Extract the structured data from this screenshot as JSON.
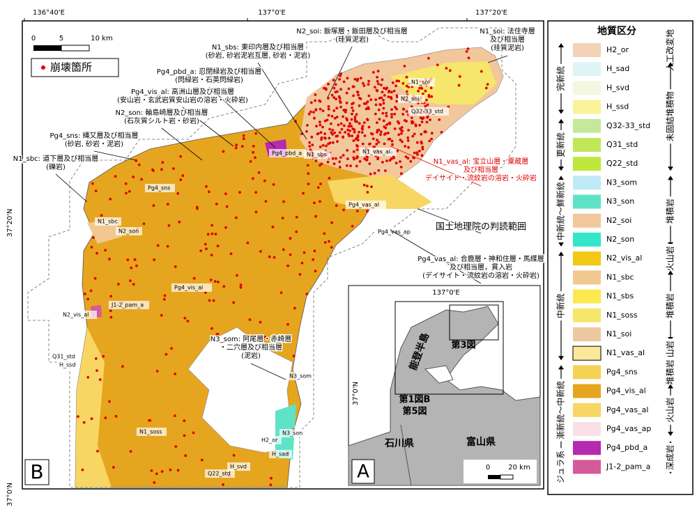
{
  "coordinates": {
    "top": [
      "136°40'E",
      "137°0'E",
      "137°20'E"
    ],
    "left": [
      "37°20'N",
      "37°0'N"
    ]
  },
  "scale_bar": [
    "0",
    "5",
    "10 km"
  ],
  "point_legend": "崩壊箇所",
  "panel_labels": {
    "main": "B",
    "inset": "A"
  },
  "callouts": [
    {
      "lines": [
        "N2_soi: 飯塚層・飯田層及び相当層",
        "(珪質泥岩)"
      ],
      "color": "#000000"
    },
    {
      "lines": [
        "N1_soi: 法住寺層",
        "及び相当層",
        "(珪質泥岩)"
      ],
      "color": "#000000"
    },
    {
      "lines": [
        "N1_sbs: 東印内層及び相当層",
        "(砂岩, 砂岩泥岩互層, 砂岩・泥岩)"
      ],
      "color": "#000000"
    },
    {
      "lines": [
        "Pg4_pbd_a: 忍閉緑岩及び相当層",
        "(閃緑岩・石英閃緑岩)"
      ],
      "color": "#000000"
    },
    {
      "lines": [
        "Pg4_vis_al: 高洲山層及び相当層",
        "(安山岩・玄武岩質安山岩の溶岩・火砕岩)"
      ],
      "color": "#000000"
    },
    {
      "lines": [
        "N2_son: 輪島崎層及び相当層",
        "(石灰質シルト岩・砂岩)"
      ],
      "color": "#000000"
    },
    {
      "lines": [
        "Pg4_sns: 縄又層及び相当層",
        "(砂岩, 砂岩・泥岩)"
      ],
      "color": "#000000"
    },
    {
      "lines": [
        "N1_sbc: 道下層及び相当層",
        "(礫岩)"
      ],
      "color": "#000000"
    },
    {
      "lines": [
        "N1_vas_al: 宝立山層・粟蔵層",
        "及び相当層",
        "デイサイト・流紋岩の溶岩・火砕岩"
      ],
      "color": "#e00000"
    },
    {
      "lines": [
        "国土地理院の判読範囲"
      ],
      "color": "#000000"
    },
    {
      "lines": [
        "Pg4_vas_al: 合鹿層・神和住層・馬緤層",
        "及び相当層，貫入岩",
        "(デイサイト・流紋岩の溶岩・火砕岩)"
      ],
      "color": "#000000"
    },
    {
      "lines": [
        "N3_som: 阿尾層・赤崎層",
        "・二穴層及び相当層",
        "(泥岩)"
      ],
      "color": "#000000"
    }
  ],
  "map_labels": [
    "N1_soi",
    "N2_soi",
    "Q32-33_std",
    "N1_vas_al",
    "Pg4_pbd_a",
    "N1_sbs",
    "Pg4_sns",
    "N1_sbc",
    "N2_son",
    "Pg4_vas_al",
    "Pg4_vas_ap",
    "Pg4_vis_al",
    "J1-2_pam_a",
    "N2_vis_al",
    "Q31_std",
    "H_ssd",
    "N3_som",
    "N1_soss",
    "Q22_std",
    "H_svd",
    "H_sad",
    "H2_or",
    "N3_son"
  ],
  "inset": {
    "lon": "137°0'E",
    "lat": "37°0'N",
    "peninsula": "能登半島",
    "fig3": "第3図",
    "fig1": "第1図B",
    "fig5": "第5図",
    "pref_left": "石川県",
    "pref_right": "富山県",
    "scale": [
      "0",
      "20 km"
    ]
  },
  "legend": {
    "title": "地質区分",
    "items": [
      {
        "code": "H2_or",
        "color": "#f2d3b8"
      },
      {
        "code": "H_sad",
        "color": "#dff4f4"
      },
      {
        "code": "H_svd",
        "color": "#f3f8e0"
      },
      {
        "code": "H_ssd",
        "color": "#fbf39a"
      },
      {
        "code": "Q32-33_std",
        "color": "#c6e89a"
      },
      {
        "code": "Q31_std",
        "color": "#c2e65a"
      },
      {
        "code": "Q22_std",
        "color": "#bfe63a"
      },
      {
        "code": "N3_som",
        "color": "#c0eaf6"
      },
      {
        "code": "N3_son",
        "color": "#5fe3c6"
      },
      {
        "code": "N2_soi",
        "color": "#f2c79c"
      },
      {
        "code": "N2_son",
        "color": "#35e6c8"
      },
      {
        "code": "N2_vis_al",
        "color": "#f1c815"
      },
      {
        "code": "N1_sbc",
        "color": "#f2c890"
      },
      {
        "code": "N1_sbs",
        "color": "#fbe94e"
      },
      {
        "code": "N1_soss",
        "color": "#f6e66c"
      },
      {
        "code": "N1_soi",
        "color": "#ecc9a0"
      },
      {
        "code": "N1_vas_al",
        "color": "#fbe89a"
      },
      {
        "code": "Pg4_sns",
        "color": "#f4d252"
      },
      {
        "code": "Pg4_vis_al",
        "color": "#e6a51e"
      },
      {
        "code": "Pg4_vas_al",
        "color": "#f8d664"
      },
      {
        "code": "Pg4_vas_ap",
        "color": "#fae0e4"
      },
      {
        "code": "Pg4_pbd_a",
        "color": "#b52ab0"
      },
      {
        "code": "J1-2_pam_a",
        "color": "#d45a9a"
      }
    ],
    "epochs": [
      "完新統",
      "更新統",
      "中新統～鮮新統",
      "中新統",
      "漸新統～中新統",
      "ジュラ系"
    ],
    "rocks": [
      "人工改変地",
      "未固結堆積物",
      "堆積岩",
      "火山岩",
      "堆積岩",
      "火山岩",
      "堆積岩",
      "火山岩",
      "深成岩"
    ]
  }
}
